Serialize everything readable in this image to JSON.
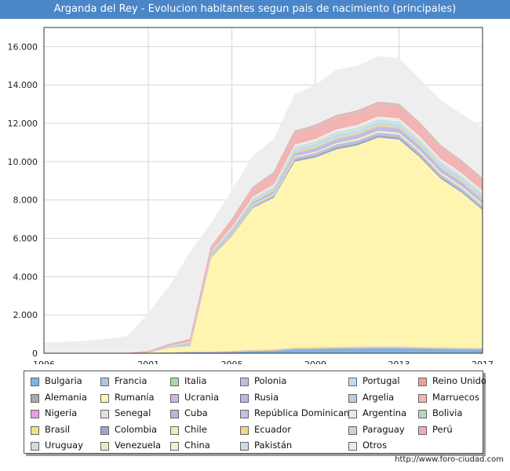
{
  "title": "Arganda del Rey - Evolucion habitantes segun pais de nacimiento (principales)",
  "footer_url": "http://www.foro-ciudad.com",
  "chart_data": {
    "type": "area",
    "stacked": true,
    "title": "Arganda del Rey - Evolucion habitantes segun pais de nacimiento (principales)",
    "x": [
      1996,
      1998,
      1999,
      2000,
      2001,
      2002,
      2003,
      2004,
      2005,
      2006,
      2007,
      2008,
      2009,
      2010,
      2011,
      2012,
      2013,
      2014,
      2015,
      2016,
      2017
    ],
    "x_ticks": [
      1996,
      2001,
      2005,
      2009,
      2013,
      2017
    ],
    "x_tick_labels": [
      "1996",
      "2001",
      "2005",
      "2009",
      "2013",
      "2017"
    ],
    "xlim": [
      1996,
      2017
    ],
    "ylim": [
      0,
      17000
    ],
    "y_ticks": [
      0,
      2000,
      4000,
      6000,
      8000,
      10000,
      12000,
      14000,
      16000
    ],
    "y_tick_labels": [
      "0",
      "2.000",
      "4.000",
      "6.000",
      "8.000",
      "10.000",
      "12.000",
      "14.000",
      "16.000"
    ],
    "grid": true,
    "legend_position": "bottom",
    "total_foreign": [
      550,
      650,
      750,
      900,
      2100,
      3500,
      5300,
      6800,
      8500,
      10300,
      11200,
      13500,
      14000,
      14800,
      15000,
      15500,
      15400,
      14300,
      13200,
      12500,
      11800
    ],
    "series": [
      {
        "name": "Bulgaria",
        "color": "#7fb2e5",
        "values": [
          0,
          0,
          0,
          0,
          10,
          30,
          50,
          50,
          60,
          100,
          120,
          200,
          220,
          240,
          250,
          260,
          260,
          240,
          220,
          200,
          190
        ]
      },
      {
        "name": "Alemania",
        "color": "#a9a9a9",
        "values": [
          0,
          0,
          0,
          0,
          5,
          5,
          10,
          10,
          10,
          10,
          10,
          10,
          10,
          10,
          10,
          10,
          10,
          10,
          10,
          10,
          10
        ]
      },
      {
        "name": "Nigeria",
        "color": "#e59ee5",
        "values": [
          0,
          0,
          0,
          0,
          0,
          0,
          0,
          0,
          10,
          10,
          10,
          10,
          10,
          10,
          10,
          10,
          10,
          10,
          10,
          10,
          10
        ]
      },
      {
        "name": "Brasil",
        "color": "#f3e08a",
        "values": [
          0,
          0,
          0,
          0,
          0,
          5,
          10,
          10,
          20,
          30,
          40,
          50,
          50,
          50,
          50,
          50,
          50,
          40,
          40,
          40,
          40
        ]
      },
      {
        "name": "Uruguay",
        "color": "#d9d9d9",
        "values": [
          0,
          0,
          0,
          0,
          0,
          0,
          5,
          5,
          10,
          10,
          10,
          10,
          10,
          10,
          10,
          10,
          10,
          10,
          10,
          10,
          10
        ]
      },
      {
        "name": "Francia",
        "color": "#b0c4de",
        "values": [
          0,
          0,
          0,
          0,
          0,
          5,
          5,
          5,
          10,
          10,
          10,
          10,
          10,
          10,
          10,
          10,
          10,
          10,
          10,
          10,
          10
        ]
      },
      {
        "name": "Rumanía",
        "color": "#fff5b0",
        "values": [
          0,
          0,
          0,
          0,
          20,
          250,
          300,
          4900,
          6000,
          7400,
          7900,
          9700,
          9900,
          10300,
          10500,
          10900,
          10800,
          9900,
          8800,
          8100,
          7200
        ]
      },
      {
        "name": "Senegal",
        "color": "#e0e0e0",
        "values": [
          0,
          0,
          0,
          0,
          0,
          0,
          0,
          5,
          10,
          10,
          10,
          10,
          10,
          10,
          10,
          10,
          10,
          10,
          10,
          10,
          10
        ]
      },
      {
        "name": "Colombia",
        "color": "#98a8c8",
        "values": [
          0,
          0,
          0,
          0,
          5,
          10,
          20,
          30,
          40,
          50,
          60,
          100,
          110,
          120,
          120,
          120,
          120,
          120,
          110,
          100,
          100
        ]
      },
      {
        "name": "Venezuela",
        "color": "#e8ebc0",
        "values": [
          0,
          0,
          0,
          0,
          0,
          0,
          0,
          5,
          10,
          10,
          10,
          10,
          10,
          10,
          10,
          10,
          10,
          10,
          10,
          10,
          10
        ]
      },
      {
        "name": "Italia",
        "color": "#a8d8a8",
        "values": [
          0,
          0,
          0,
          0,
          0,
          5,
          5,
          5,
          10,
          10,
          10,
          10,
          10,
          10,
          10,
          10,
          10,
          10,
          10,
          10,
          10
        ]
      },
      {
        "name": "Ucrania",
        "color": "#c8b8e8",
        "values": [
          0,
          0,
          0,
          0,
          5,
          10,
          20,
          30,
          40,
          50,
          60,
          80,
          90,
          100,
          100,
          100,
          100,
          100,
          90,
          90,
          90
        ]
      },
      {
        "name": "Cuba",
        "color": "#c3b0d8",
        "values": [
          0,
          0,
          0,
          0,
          0,
          0,
          5,
          5,
          10,
          10,
          10,
          10,
          10,
          10,
          10,
          10,
          10,
          10,
          10,
          10,
          10
        ]
      },
      {
        "name": "Chile",
        "color": "#ede8b8",
        "values": [
          0,
          0,
          0,
          0,
          0,
          0,
          5,
          5,
          10,
          10,
          10,
          10,
          10,
          10,
          10,
          10,
          10,
          10,
          10,
          10,
          10
        ]
      },
      {
        "name": "China",
        "color": "#f4f0c8",
        "values": [
          0,
          0,
          0,
          0,
          0,
          0,
          5,
          10,
          20,
          30,
          40,
          50,
          60,
          70,
          80,
          90,
          90,
          90,
          90,
          90,
          90
        ]
      },
      {
        "name": "Polonia",
        "color": "#b8c0e8",
        "values": [
          0,
          0,
          0,
          0,
          10,
          30,
          50,
          60,
          70,
          80,
          90,
          100,
          110,
          120,
          120,
          130,
          130,
          130,
          120,
          120,
          120
        ]
      },
      {
        "name": "Rusia",
        "color": "#b4b8e8",
        "values": [
          0,
          0,
          0,
          0,
          0,
          0,
          5,
          5,
          10,
          10,
          10,
          10,
          10,
          10,
          10,
          10,
          10,
          10,
          10,
          10,
          10
        ]
      },
      {
        "name": "República Dominicana",
        "color": "#c8bce8",
        "values": [
          0,
          0,
          0,
          0,
          0,
          0,
          5,
          10,
          20,
          30,
          40,
          50,
          60,
          70,
          80,
          80,
          80,
          80,
          80,
          80,
          80
        ]
      },
      {
        "name": "Ecuador",
        "color": "#f0d880",
        "values": [
          0,
          0,
          0,
          0,
          5,
          10,
          20,
          30,
          40,
          50,
          60,
          70,
          70,
          70,
          70,
          70,
          70,
          60,
          60,
          60,
          60
        ]
      },
      {
        "name": "Pakistán",
        "color": "#c8dcf0",
        "values": [
          0,
          0,
          0,
          0,
          0,
          0,
          5,
          10,
          20,
          20,
          20,
          30,
          30,
          30,
          30,
          30,
          30,
          30,
          30,
          30,
          30
        ]
      },
      {
        "name": "Portugal",
        "color": "#c0dcf4",
        "values": [
          0,
          0,
          0,
          0,
          5,
          10,
          20,
          30,
          40,
          50,
          60,
          80,
          90,
          100,
          100,
          100,
          100,
          100,
          100,
          100,
          100
        ]
      },
      {
        "name": "Argelia",
        "color": "#b8cce8",
        "values": [
          0,
          0,
          0,
          0,
          0,
          5,
          5,
          10,
          20,
          20,
          20,
          30,
          30,
          30,
          30,
          30,
          30,
          30,
          30,
          30,
          30
        ]
      },
      {
        "name": "Argentina",
        "color": "#e8e8e8",
        "values": [
          0,
          0,
          0,
          0,
          0,
          5,
          10,
          20,
          30,
          40,
          50,
          60,
          60,
          60,
          60,
          60,
          60,
          60,
          60,
          50,
          50
        ]
      },
      {
        "name": "Paraguay",
        "color": "#c0dcc8",
        "values": [
          0,
          0,
          0,
          0,
          0,
          0,
          5,
          10,
          20,
          30,
          40,
          50,
          60,
          60,
          60,
          60,
          60,
          60,
          60,
          60,
          60
        ]
      },
      {
        "name": "Otros",
        "color": "#ebebeb",
        "values": [
          0,
          0,
          0,
          0,
          5,
          20,
          40,
          50,
          80,
          100,
          120,
          150,
          160,
          170,
          180,
          190,
          190,
          180,
          170,
          160,
          160
        ]
      },
      {
        "name": "Reino Unido",
        "color": "#f0a0a0",
        "values": [
          0,
          0,
          0,
          0,
          5,
          10,
          10,
          10,
          20,
          20,
          20,
          30,
          30,
          30,
          30,
          30,
          30,
          30,
          30,
          30,
          30
        ]
      },
      {
        "name": "Marruecos",
        "color": "#f4b4b4",
        "values": [
          0,
          0,
          0,
          0,
          20,
          50,
          100,
          200,
          300,
          400,
          500,
          550,
          560,
          570,
          580,
          590,
          590,
          560,
          530,
          500,
          480
        ]
      },
      {
        "name": "Bolivia",
        "color": "#b8d8b8",
        "values": [
          0,
          0,
          0,
          0,
          0,
          5,
          10,
          20,
          30,
          40,
          50,
          60,
          60,
          60,
          60,
          60,
          60,
          60,
          60,
          50,
          50
        ]
      },
      {
        "name": "Perú",
        "color": "#f4a8b8",
        "values": [
          0,
          0,
          0,
          0,
          0,
          5,
          10,
          20,
          30,
          40,
          50,
          60,
          60,
          60,
          60,
          60,
          60,
          60,
          60,
          60,
          60
        ]
      }
    ]
  },
  "legend_items": [
    {
      "name": "Bulgaria",
      "color": "#7fb2e5"
    },
    {
      "name": "Francia",
      "color": "#b0c4de"
    },
    {
      "name": "Italia",
      "color": "#a8d8a8"
    },
    {
      "name": "Polonia",
      "color": "#b8c0e8"
    },
    {
      "name": "Portugal",
      "color": "#c0dcf4"
    },
    {
      "name": "Reino Unido",
      "color": "#f0a0a0"
    },
    {
      "name": "Alemania",
      "color": "#a9a9a9"
    },
    {
      "name": "Rumanía",
      "color": "#fff5b0"
    },
    {
      "name": "Ucrania",
      "color": "#c8b8e8"
    },
    {
      "name": "Rusia",
      "color": "#b4b8e8"
    },
    {
      "name": "Argelia",
      "color": "#b8cce8"
    },
    {
      "name": "Marruecos",
      "color": "#f4b4b4"
    },
    {
      "name": "Nigeria",
      "color": "#e59ee5"
    },
    {
      "name": "Senegal",
      "color": "#e0e0e0"
    },
    {
      "name": "Cuba",
      "color": "#c3b0d8"
    },
    {
      "name": "República Dominicana",
      "color": "#c8bce8"
    },
    {
      "name": "Argentina",
      "color": "#e8e8e8"
    },
    {
      "name": "Bolivia",
      "color": "#b8d8b8"
    },
    {
      "name": "Brasil",
      "color": "#f3e08a"
    },
    {
      "name": "Colombia",
      "color": "#98a8c8"
    },
    {
      "name": "Chile",
      "color": "#ede8b8"
    },
    {
      "name": "Ecuador",
      "color": "#f0d880"
    },
    {
      "name": "Paraguay",
      "color": "#c0dcc8"
    },
    {
      "name": "Perú",
      "color": "#f4a8b8"
    },
    {
      "name": "Uruguay",
      "color": "#d9d9d9"
    },
    {
      "name": "Venezuela",
      "color": "#e8ebc0"
    },
    {
      "name": "China",
      "color": "#f4f0c8"
    },
    {
      "name": "Pakistán",
      "color": "#c8dcf0"
    },
    {
      "name": "Otros",
      "color": "#ebebeb"
    }
  ]
}
